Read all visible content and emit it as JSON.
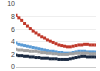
{
  "chart_data": {
    "type": "line",
    "categories": [
      null,
      null,
      null,
      null,
      null,
      null,
      null,
      null,
      null,
      null,
      null,
      null,
      null,
      null,
      null,
      null,
      null,
      null,
      null,
      null,
      null,
      null,
      null,
      null,
      null,
      null,
      null,
      null,
      null
    ],
    "series": [
      {
        "color": "#c0392b",
        "line_style": "dashed",
        "marker": "square",
        "values": [
          8.2,
          7.8,
          7.4,
          6.9,
          6.5,
          6.1,
          5.7,
          5.4,
          5.1,
          4.8,
          4.6,
          4.3,
          4.1,
          3.9,
          3.7,
          3.5,
          3.4,
          3.3,
          3.2,
          3.2,
          3.3,
          3.4,
          3.5,
          3.5,
          3.6,
          3.6,
          3.5,
          3.5,
          3.5
        ]
      },
      {
        "color": "#5b9bd5",
        "line_style": "dashed",
        "marker": "square",
        "values": [
          3.8,
          3.6,
          3.5,
          3.4,
          3.3,
          3.2,
          3.1,
          3.0,
          2.9,
          2.8,
          2.7,
          2.6,
          2.5,
          2.5,
          2.4,
          2.3,
          2.3,
          2.2,
          2.2,
          2.2,
          2.3,
          2.4,
          2.5,
          2.5,
          2.5,
          2.4,
          2.4,
          2.4,
          2.4
        ]
      },
      {
        "color": "#a0a0a0",
        "line_style": "dashed",
        "marker": "square",
        "values": [
          2.8,
          2.7,
          2.7,
          2.6,
          2.6,
          2.5,
          2.5,
          2.5,
          2.4,
          2.3,
          2.3,
          2.2,
          2.2,
          2.1,
          2.1,
          2.0,
          2.0,
          2.0,
          2.0,
          2.1,
          2.1,
          2.2,
          2.2,
          2.2,
          2.2,
          2.2,
          2.1,
          2.1,
          2.1
        ]
      },
      {
        "color": "#1a2940",
        "line_style": "solid",
        "marker": "square",
        "values": [
          1.9,
          1.8,
          1.8,
          1.7,
          1.7,
          1.6,
          1.6,
          1.5,
          1.5,
          1.4,
          1.4,
          1.4,
          1.3,
          1.3,
          1.3,
          1.2,
          1.2,
          1.2,
          1.2,
          1.3,
          1.4,
          1.5,
          1.6,
          1.7,
          1.7,
          1.6,
          1.6,
          1.6,
          1.6
        ]
      }
    ],
    "xlim": [
      0,
      28
    ],
    "ylim": [
      0,
      10
    ],
    "yticks": [
      0,
      2,
      4,
      6,
      8,
      10
    ],
    "grid": true,
    "tick_labels": "y"
  }
}
